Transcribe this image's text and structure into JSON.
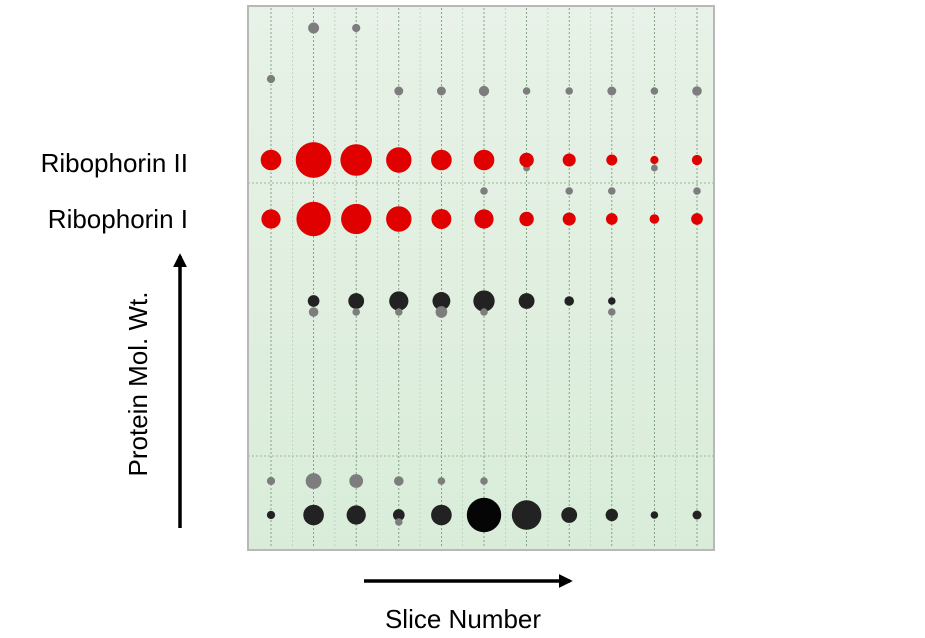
{
  "chart_data": {
    "type": "scatter",
    "xlabel": "Slice Number",
    "ylabel": "Protein Mol. Wt.",
    "row_labels": [
      "Ribophorin II",
      "Ribophorin I"
    ],
    "slices": 11,
    "colors": {
      "highlight": "#e00000",
      "dark": "#222222",
      "light": "#7d7d7d",
      "background_top": "#e8f2e8",
      "background_bottom": "#d9ecd9",
      "frame": "#b8b8b8"
    },
    "rows": [
      {
        "key": "r1",
        "series": "light",
        "sizes": [
          0,
          1.6,
          1.2,
          0,
          0,
          0,
          0,
          0,
          0,
          0,
          0
        ]
      },
      {
        "key": "r2",
        "series": "light",
        "sizes": [
          1.2,
          0,
          0,
          0,
          0,
          0,
          0,
          0,
          0,
          0,
          0
        ]
      },
      {
        "key": "r3",
        "series": "light",
        "sizes": [
          0,
          0,
          0,
          1.3,
          1.3,
          1.5,
          1.1,
          1.1,
          1.3,
          1.1,
          1.4
        ]
      },
      {
        "key": "ribophorin-ii",
        "series": "highlight",
        "sizes": [
          3.0,
          5.2,
          4.6,
          3.7,
          3.0,
          3.0,
          2.1,
          1.9,
          1.6,
          1.2,
          1.5
        ]
      },
      {
        "key": "r5",
        "series": "light",
        "sizes": [
          0,
          0,
          0,
          0,
          0,
          0,
          1.0,
          0,
          0,
          1.0,
          0
        ]
      },
      {
        "key": "r6",
        "series": "light",
        "sizes": [
          0,
          0,
          0,
          0,
          0,
          1.1,
          0,
          1.1,
          1.1,
          0,
          1.1
        ]
      },
      {
        "key": "ribophorin-i",
        "series": "highlight",
        "sizes": [
          2.8,
          5.0,
          4.4,
          3.7,
          2.9,
          2.8,
          2.1,
          1.9,
          1.7,
          1.4,
          1.7
        ]
      },
      {
        "key": "r8",
        "series": "dark",
        "sizes": [
          0,
          1.7,
          2.3,
          2.8,
          2.6,
          3.1,
          2.3,
          1.4,
          1.1,
          0,
          0
        ]
      },
      {
        "key": "r9",
        "series": "light",
        "sizes": [
          0,
          1.4,
          1.1,
          1.1,
          1.7,
          1.1,
          0,
          0,
          1.1,
          0,
          0
        ]
      },
      {
        "key": "r10",
        "series": "light",
        "sizes": [
          1.2,
          2.3,
          2.0,
          1.4,
          1.1,
          1.1,
          0,
          0,
          0,
          0,
          0
        ]
      },
      {
        "key": "r11",
        "series": "dark",
        "sizes": [
          1.2,
          3.0,
          2.8,
          1.7,
          3.0,
          5.0,
          4.3,
          2.3,
          1.8,
          1.1,
          1.3
        ]
      },
      {
        "key": "r12",
        "series": "light",
        "sizes": [
          0,
          0,
          0,
          1.1,
          0,
          0,
          0,
          0,
          0,
          0,
          0
        ]
      }
    ]
  }
}
